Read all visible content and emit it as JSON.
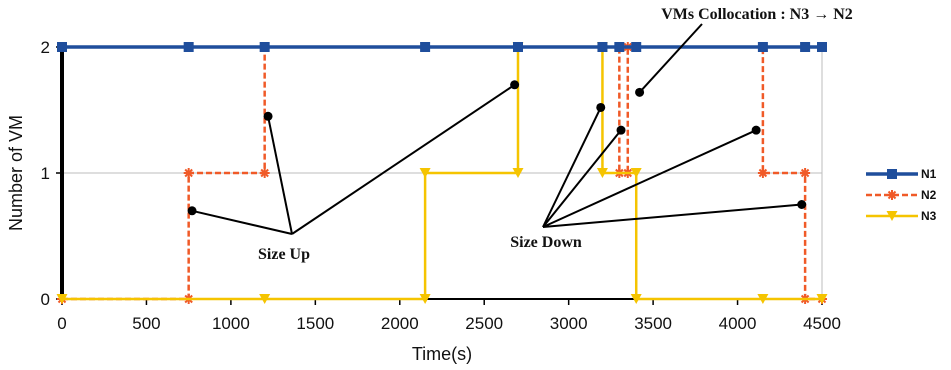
{
  "chart_data": {
    "type": "line",
    "step": true,
    "xlabel": "Time(s)",
    "ylabel": "Number of VM",
    "xlim": [
      0,
      4500
    ],
    "ylim": [
      0,
      2
    ],
    "xticks": [
      0,
      500,
      1000,
      1500,
      2000,
      2500,
      3000,
      3500,
      4000,
      4500
    ],
    "yticks": [
      0,
      1,
      2
    ],
    "grid": "horizontal",
    "legend_position": "right",
    "series": [
      {
        "name": "N1",
        "color": "#1f4e9c",
        "line_style": "solid",
        "marker": "square",
        "points": [
          [
            0,
            2
          ],
          [
            750,
            2
          ],
          [
            1200,
            2
          ],
          [
            2150,
            2
          ],
          [
            2700,
            2
          ],
          [
            3200,
            2
          ],
          [
            3300,
            2
          ],
          [
            3400,
            2
          ],
          [
            4150,
            2
          ],
          [
            4400,
            2
          ],
          [
            4500,
            2
          ]
        ]
      },
      {
        "name": "N2",
        "color": "#f05a28",
        "line_style": "dashed",
        "marker": "asterisk",
        "points": [
          [
            0,
            0
          ],
          [
            750,
            0
          ],
          [
            750,
            1
          ],
          [
            1200,
            1
          ],
          [
            1200,
            2
          ],
          [
            3300,
            2
          ],
          [
            3300,
            1
          ],
          [
            3350,
            1
          ],
          [
            3350,
            2
          ],
          [
            4150,
            2
          ],
          [
            4150,
            1
          ],
          [
            4400,
            1
          ],
          [
            4400,
            0
          ],
          [
            4500,
            0
          ]
        ]
      },
      {
        "name": "N3",
        "color": "#f5c400",
        "line_style": "solid",
        "marker": "triangle-down",
        "points": [
          [
            0,
            0
          ],
          [
            1200,
            0
          ],
          [
            2150,
            0
          ],
          [
            2150,
            1
          ],
          [
            2700,
            1
          ],
          [
            2700,
            2
          ],
          [
            3200,
            2
          ],
          [
            3200,
            1
          ],
          [
            3400,
            1
          ],
          [
            3400,
            0
          ],
          [
            4150,
            0
          ],
          [
            4500,
            0
          ]
        ]
      }
    ],
    "annotations": [
      {
        "text": "Size Up",
        "label_at": [
          1380,
          0.52
        ],
        "targets": [
          [
            770,
            0.7
          ],
          [
            1220,
            1.45
          ],
          [
            2680,
            1.7
          ]
        ]
      },
      {
        "text": "Size Down",
        "label_at": [
          2850,
          0.58
        ],
        "targets": [
          [
            3190,
            1.52
          ],
          [
            3310,
            1.34
          ],
          [
            4110,
            1.34
          ],
          [
            4380,
            0.75
          ]
        ]
      },
      {
        "text": "VMs Collocation : N3 → N2",
        "label_at": [
          3850,
          2.22
        ],
        "targets": [
          [
            3420,
            1.64
          ]
        ]
      }
    ]
  }
}
